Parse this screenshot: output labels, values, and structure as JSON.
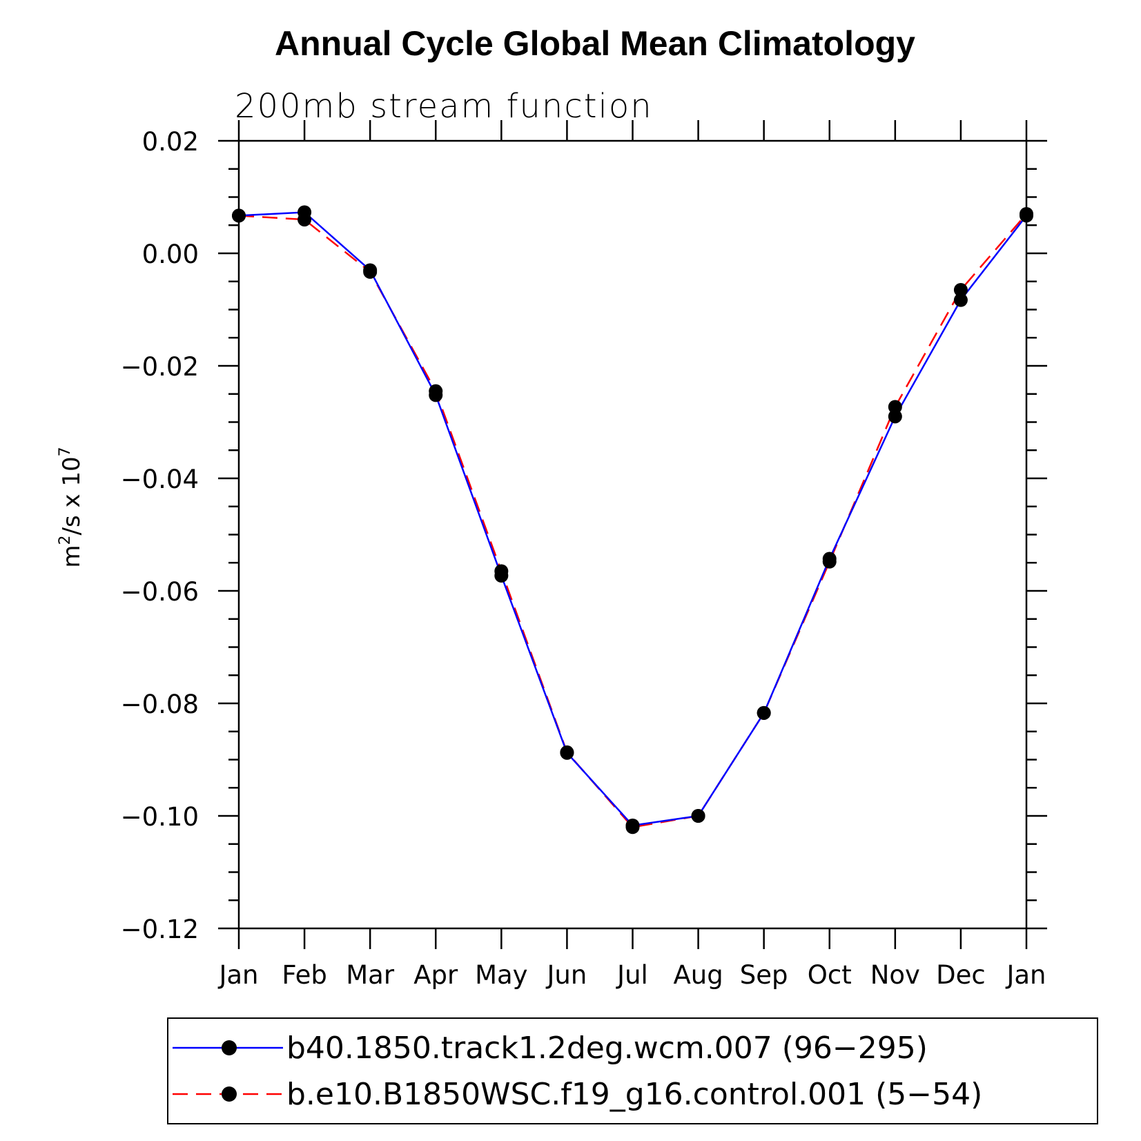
{
  "chart_data": {
    "type": "line",
    "title": "Annual Cycle Global Mean Climatology",
    "subtitle": "200mb stream function",
    "ylabel_base": "m",
    "ylabel_sup": "2",
    "ylabel_mid": "/s x 10",
    "ylabel_sup2": "7",
    "ylim": [
      -0.12,
      0.02
    ],
    "yticks": [
      0.02,
      0.0,
      -0.02,
      -0.04,
      -0.06,
      -0.08,
      -0.1,
      -0.12
    ],
    "ytick_labels": [
      "0.02",
      "0.00",
      "−0.02",
      "−0.04",
      "−0.06",
      "−0.08",
      "−0.10",
      "−0.12"
    ],
    "categories": [
      "Jan",
      "Feb",
      "Mar",
      "Apr",
      "May",
      "Jun",
      "Jul",
      "Aug",
      "Sep",
      "Oct",
      "Nov",
      "Dec",
      "Jan"
    ],
    "series": [
      {
        "name": "b40.1850.track1.2deg.wcm.007 (96−295)",
        "color": "#0000ff",
        "dash": "solid",
        "values": [
          0.0067,
          0.0073,
          -0.003,
          -0.0252,
          -0.0573,
          -0.0888,
          -0.1017,
          -0.1,
          -0.0817,
          -0.0543,
          -0.029,
          -0.0083,
          0.0067
        ]
      },
      {
        "name": "b.e10.B1850WSC.f19_g16.control.001 (5−54)",
        "color": "#ff0000",
        "dash": "dashed",
        "values": [
          0.0067,
          0.006,
          -0.0033,
          -0.0245,
          -0.0565,
          -0.0887,
          -0.102,
          -0.1,
          -0.0817,
          -0.0548,
          -0.0273,
          -0.0065,
          0.007
        ]
      }
    ],
    "legend_position": "bottom",
    "grid": false
  }
}
